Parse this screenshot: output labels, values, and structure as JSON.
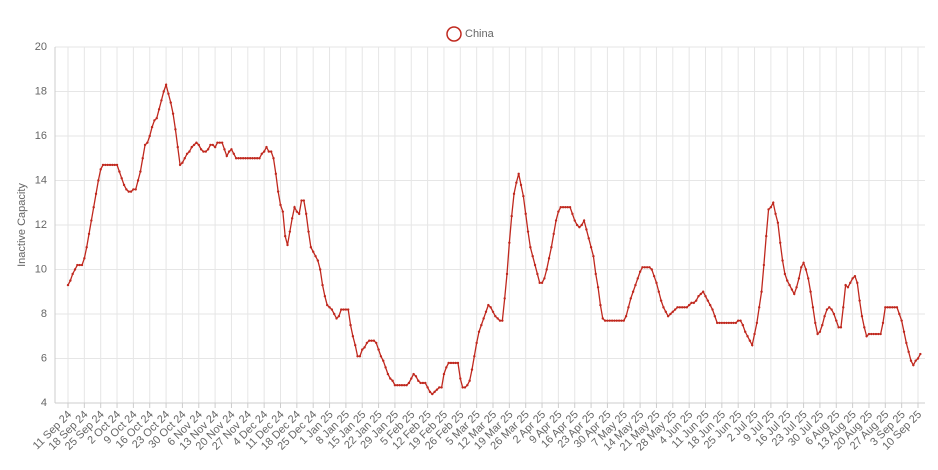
{
  "chart_data": {
    "type": "line",
    "y_label": "Inactive Capacity",
    "legend": "top",
    "grid": true,
    "ylim": [
      4,
      20
    ],
    "yticks": [
      4,
      6,
      8,
      10,
      12,
      14,
      16,
      18,
      20
    ],
    "categories": [
      "11 Sep 24",
      null,
      null,
      null,
      null,
      null,
      null,
      "18 Sep 24",
      null,
      null,
      null,
      null,
      null,
      null,
      "25 Sep 24",
      null,
      null,
      null,
      null,
      null,
      null,
      "2 Oct 24",
      null,
      null,
      null,
      null,
      null,
      null,
      "9 Oct 24",
      null,
      null,
      null,
      null,
      null,
      null,
      "16 Oct 24",
      null,
      null,
      null,
      null,
      null,
      null,
      "23 Oct 24",
      null,
      null,
      null,
      null,
      null,
      null,
      "30 Oct 24",
      null,
      null,
      null,
      null,
      null,
      null,
      "6 Nov 24",
      null,
      null,
      null,
      null,
      null,
      null,
      "13 Nov 24",
      null,
      null,
      null,
      null,
      null,
      null,
      "20 Nov 24",
      null,
      null,
      null,
      null,
      null,
      null,
      "27 Nov 24",
      null,
      null,
      null,
      null,
      null,
      null,
      "4 Dec 24",
      null,
      null,
      null,
      null,
      null,
      null,
      "11 Dec 24",
      null,
      null,
      null,
      null,
      null,
      null,
      "18 Dec 24",
      null,
      null,
      null,
      null,
      null,
      null,
      "25 Dec 24",
      null,
      null,
      null,
      null,
      null,
      null,
      "1 Jan 25",
      null,
      null,
      null,
      null,
      null,
      null,
      "8 Jan 25",
      null,
      null,
      null,
      null,
      null,
      null,
      "15 Jan 25",
      null,
      null,
      null,
      null,
      null,
      null,
      "22 Jan 25",
      null,
      null,
      null,
      null,
      null,
      null,
      "29 Jan 25",
      null,
      null,
      null,
      null,
      null,
      null,
      "5 Feb 25",
      null,
      null,
      null,
      null,
      null,
      null,
      "12 Feb 25",
      null,
      null,
      null,
      null,
      null,
      null,
      "19 Feb 25",
      null,
      null,
      null,
      null,
      null,
      null,
      "26 Feb 25",
      null,
      null,
      null,
      null,
      null,
      null,
      "5 Mar 25",
      null,
      null,
      null,
      null,
      null,
      null,
      "12 Mar 25",
      null,
      null,
      null,
      null,
      null,
      null,
      "19 Mar 25",
      null,
      null,
      null,
      null,
      null,
      null,
      "26 Mar 25",
      null,
      null,
      null,
      null,
      null,
      null,
      "2 Apr 25",
      null,
      null,
      null,
      null,
      null,
      null,
      "9 Apr 25",
      null,
      null,
      null,
      null,
      null,
      null,
      "16 Apr 25",
      null,
      null,
      null,
      null,
      null,
      null,
      "23 Apr 25",
      null,
      null,
      null,
      null,
      null,
      null,
      "30 Apr 25",
      null,
      null,
      null,
      null,
      null,
      null,
      "7 May 25",
      null,
      null,
      null,
      null,
      null,
      null,
      "14 May 25",
      null,
      null,
      null,
      null,
      null,
      null,
      "21 May 25",
      null,
      null,
      null,
      null,
      null,
      null,
      "28 May 25",
      null,
      null,
      null,
      null,
      null,
      null,
      "4 Jun 25",
      null,
      null,
      null,
      null,
      null,
      null,
      "11 Jun 25",
      null,
      null,
      null,
      null,
      null,
      null,
      "18 Jun 25",
      null,
      null,
      null,
      null,
      null,
      null,
      "25 Jun 25",
      null,
      null,
      null,
      null,
      null,
      null,
      "2 Jul 25",
      null,
      null,
      null,
      null,
      null,
      null,
      "9 Jul 25",
      null,
      null,
      null,
      null,
      null,
      null,
      "16 Jul 25",
      null,
      null,
      null,
      null,
      null,
      null,
      "23 Jul 25",
      null,
      null,
      null,
      null,
      null,
      null,
      "30 Jul 25",
      null,
      null,
      null,
      null,
      null,
      null,
      "6 Aug 25",
      null,
      null,
      null,
      null,
      null,
      null,
      "13 Aug 25",
      null,
      null,
      null,
      null,
      null,
      null,
      "20 Aug 25",
      null,
      null,
      null,
      null,
      null,
      null,
      "27 Aug 25",
      null,
      null,
      null,
      null,
      null,
      null,
      "3 Sep 25",
      null,
      null,
      null,
      null,
      null,
      null,
      "10 Sep 25",
      null
    ],
    "series": [
      {
        "name": "China",
        "color": "#c0281e",
        "values": [
          9.3,
          9.5,
          9.8,
          10.0,
          10.2,
          10.2,
          10.2,
          10.5,
          11.0,
          11.6,
          12.2,
          12.8,
          13.4,
          14.0,
          14.5,
          14.7,
          14.7,
          14.7,
          14.7,
          14.7,
          14.7,
          14.7,
          14.4,
          14.1,
          13.8,
          13.6,
          13.5,
          13.5,
          13.6,
          13.6,
          14.0,
          14.4,
          15.0,
          15.6,
          15.7,
          16.0,
          16.4,
          16.7,
          16.8,
          17.2,
          17.6,
          18.0,
          18.3,
          17.9,
          17.5,
          17.0,
          16.3,
          15.5,
          14.7,
          14.8,
          15.0,
          15.2,
          15.3,
          15.5,
          15.6,
          15.7,
          15.6,
          15.4,
          15.3,
          15.3,
          15.4,
          15.6,
          15.6,
          15.5,
          15.7,
          15.7,
          15.7,
          15.4,
          15.1,
          15.3,
          15.4,
          15.2,
          15.0,
          15.0,
          15.0,
          15.0,
          15.0,
          15.0,
          15.0,
          15.0,
          15.0,
          15.0,
          15.0,
          15.2,
          15.3,
          15.5,
          15.3,
          15.3,
          15.0,
          14.3,
          13.5,
          12.9,
          12.6,
          11.5,
          11.1,
          11.7,
          12.3,
          12.8,
          12.6,
          12.5,
          13.1,
          13.1,
          12.5,
          11.7,
          11.0,
          10.8,
          10.6,
          10.4,
          10.0,
          9.3,
          8.8,
          8.4,
          8.3,
          8.2,
          8.0,
          7.8,
          7.9,
          8.2,
          8.2,
          8.2,
          8.2,
          7.5,
          7.0,
          6.6,
          6.1,
          6.1,
          6.4,
          6.5,
          6.7,
          6.8,
          6.8,
          6.8,
          6.7,
          6.4,
          6.1,
          5.9,
          5.6,
          5.3,
          5.1,
          5.0,
          4.8,
          4.8,
          4.8,
          4.8,
          4.8,
          4.8,
          4.9,
          5.1,
          5.3,
          5.2,
          5.0,
          4.9,
          4.9,
          4.9,
          4.7,
          4.5,
          4.4,
          4.5,
          4.6,
          4.7,
          4.7,
          5.3,
          5.6,
          5.8,
          5.8,
          5.8,
          5.8,
          5.8,
          5.1,
          4.7,
          4.7,
          4.8,
          5.0,
          5.5,
          6.1,
          6.7,
          7.2,
          7.5,
          7.8,
          8.1,
          8.4,
          8.3,
          8.1,
          7.9,
          7.8,
          7.7,
          7.7,
          8.7,
          9.8,
          11.2,
          12.4,
          13.4,
          13.9,
          14.3,
          13.8,
          13.3,
          12.5,
          11.7,
          11.0,
          10.6,
          10.2,
          9.8,
          9.4,
          9.4,
          9.6,
          10.0,
          10.5,
          11.0,
          11.6,
          12.2,
          12.6,
          12.8,
          12.8,
          12.8,
          12.8,
          12.8,
          12.5,
          12.2,
          12.0,
          11.9,
          12.0,
          12.2,
          11.8,
          11.4,
          11.0,
          10.6,
          9.8,
          9.2,
          8.4,
          7.8,
          7.7,
          7.7,
          7.7,
          7.7,
          7.7,
          7.7,
          7.7,
          7.7,
          7.7,
          7.9,
          8.3,
          8.7,
          9.0,
          9.3,
          9.6,
          9.9,
          10.1,
          10.1,
          10.1,
          10.1,
          10.0,
          9.7,
          9.4,
          9.0,
          8.6,
          8.3,
          8.1,
          7.9,
          8.0,
          8.1,
          8.2,
          8.3,
          8.3,
          8.3,
          8.3,
          8.3,
          8.4,
          8.5,
          8.5,
          8.6,
          8.8,
          8.9,
          9.0,
          8.8,
          8.6,
          8.4,
          8.2,
          7.9,
          7.6,
          7.6,
          7.6,
          7.6,
          7.6,
          7.6,
          7.6,
          7.6,
          7.6,
          7.7,
          7.7,
          7.5,
          7.2,
          7.0,
          6.8,
          6.6,
          7.1,
          7.6,
          8.3,
          9.0,
          10.2,
          11.5,
          12.7,
          12.8,
          13.0,
          12.5,
          12.1,
          11.2,
          10.4,
          9.8,
          9.5,
          9.3,
          9.1,
          8.9,
          9.2,
          9.6,
          10.1,
          10.3,
          10.0,
          9.6,
          9.0,
          8.3,
          7.6,
          7.1,
          7.2,
          7.5,
          7.9,
          8.2,
          8.3,
          8.2,
          8.0,
          7.7,
          7.4,
          7.4,
          8.3,
          9.3,
          9.2,
          9.4,
          9.6,
          9.7,
          9.4,
          8.6,
          7.9,
          7.4,
          7.0,
          7.1,
          7.1,
          7.1,
          7.1,
          7.1,
          7.1,
          7.6,
          8.3,
          8.3,
          8.3,
          8.3,
          8.3,
          8.3,
          8.0,
          7.7,
          7.2,
          6.7,
          6.3,
          5.9,
          5.7,
          5.9,
          6.0,
          6.2
        ]
      }
    ]
  }
}
